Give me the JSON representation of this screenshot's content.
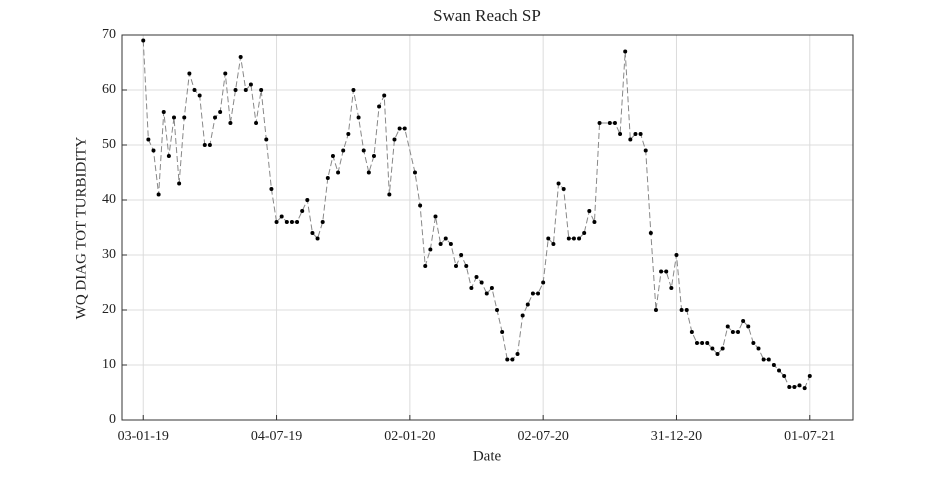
{
  "chart_data": {
    "type": "line",
    "title": "Swan Reach SP",
    "xlabel": "Date",
    "ylabel": "WQ DIAG TOT TURBIDITY",
    "x": [
      "2019-01-03",
      "2019-01-10",
      "2019-01-17",
      "2019-01-24",
      "2019-01-31",
      "2019-02-07",
      "2019-02-14",
      "2019-02-21",
      "2019-02-28",
      "2019-03-07",
      "2019-03-14",
      "2019-03-21",
      "2019-03-28",
      "2019-04-04",
      "2019-04-11",
      "2019-04-18",
      "2019-04-25",
      "2019-05-02",
      "2019-05-09",
      "2019-05-16",
      "2019-05-23",
      "2019-05-30",
      "2019-06-06",
      "2019-06-13",
      "2019-06-20",
      "2019-06-27",
      "2019-07-04",
      "2019-07-11",
      "2019-07-18",
      "2019-07-25",
      "2019-08-01",
      "2019-08-08",
      "2019-08-15",
      "2019-08-22",
      "2019-08-29",
      "2019-09-05",
      "2019-09-12",
      "2019-09-19",
      "2019-09-26",
      "2019-10-03",
      "2019-10-10",
      "2019-10-17",
      "2019-10-24",
      "2019-10-31",
      "2019-11-07",
      "2019-11-14",
      "2019-11-21",
      "2019-11-28",
      "2019-12-05",
      "2019-12-12",
      "2019-12-19",
      "2019-12-26",
      "2020-01-09",
      "2020-01-16",
      "2020-01-23",
      "2020-01-30",
      "2020-02-06",
      "2020-02-13",
      "2020-02-20",
      "2020-02-27",
      "2020-03-05",
      "2020-03-12",
      "2020-03-19",
      "2020-03-26",
      "2020-04-02",
      "2020-04-09",
      "2020-04-16",
      "2020-04-23",
      "2020-04-30",
      "2020-05-07",
      "2020-05-14",
      "2020-05-21",
      "2020-05-28",
      "2020-06-04",
      "2020-06-11",
      "2020-06-18",
      "2020-06-25",
      "2020-07-02",
      "2020-07-09",
      "2020-07-16",
      "2020-07-23",
      "2020-07-30",
      "2020-08-06",
      "2020-08-13",
      "2020-08-20",
      "2020-08-27",
      "2020-09-03",
      "2020-09-10",
      "2020-09-17",
      "2020-10-01",
      "2020-10-08",
      "2020-10-15",
      "2020-10-22",
      "2020-10-29",
      "2020-11-05",
      "2020-11-12",
      "2020-11-19",
      "2020-11-26",
      "2020-12-03",
      "2020-12-10",
      "2020-12-17",
      "2020-12-24",
      "2020-12-31",
      "2021-01-07",
      "2021-01-14",
      "2021-01-21",
      "2021-01-28",
      "2021-02-04",
      "2021-02-11",
      "2021-02-18",
      "2021-02-25",
      "2021-03-04",
      "2021-03-11",
      "2021-03-18",
      "2021-03-25",
      "2021-04-01",
      "2021-04-08",
      "2021-04-15",
      "2021-04-22",
      "2021-04-29",
      "2021-05-06",
      "2021-05-13",
      "2021-05-20",
      "2021-05-27",
      "2021-06-03",
      "2021-06-10",
      "2021-06-17",
      "2021-06-24",
      "2021-07-01"
    ],
    "series": [
      {
        "color": "#000000",
        "values": [
          69,
          51,
          49,
          41,
          56,
          48,
          55,
          43,
          55,
          63,
          60,
          59,
          50,
          50,
          55,
          56,
          63,
          54,
          60,
          66,
          60,
          61,
          54,
          60,
          51,
          42,
          36,
          37,
          36,
          36,
          36,
          38,
          40,
          34,
          33,
          36,
          44,
          48,
          45,
          49,
          52,
          60,
          55,
          49,
          45,
          48,
          57,
          59,
          41,
          51,
          53,
          53,
          45,
          39,
          28,
          31,
          37,
          32,
          33,
          32,
          28,
          30,
          28,
          24,
          26,
          25,
          23,
          24,
          20,
          16,
          11,
          11,
          12,
          19,
          21,
          23,
          23,
          25,
          33,
          32,
          43,
          42,
          33,
          33,
          33,
          34,
          38,
          36,
          54,
          54,
          54,
          52,
          67,
          51,
          52,
          52,
          49,
          34,
          20,
          27,
          27,
          24,
          30,
          20,
          20,
          16,
          14,
          14,
          14,
          13,
          12,
          13,
          17,
          16,
          16,
          18,
          17,
          14,
          13,
          11,
          11,
          10,
          9,
          8,
          6,
          6,
          6.3,
          5.8,
          8
        ]
      }
    ],
    "xlim": [
      "2018-12-05",
      "2021-08-29"
    ],
    "xticks": [
      {
        "value": "2019-01-03",
        "label": "03-01-19"
      },
      {
        "value": "2019-07-04",
        "label": "04-07-19"
      },
      {
        "value": "2020-01-02",
        "label": "02-01-20"
      },
      {
        "value": "2020-07-02",
        "label": "02-07-20"
      },
      {
        "value": "2020-12-31",
        "label": "31-12-20"
      },
      {
        "value": "2021-07-01",
        "label": "01-07-21"
      }
    ],
    "ylim": [
      0,
      70
    ],
    "yticks": [
      0,
      10,
      20,
      30,
      40,
      50,
      60,
      70
    ],
    "grid": true
  }
}
